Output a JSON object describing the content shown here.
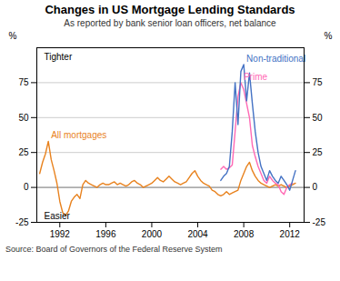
{
  "chart_data": {
    "type": "line",
    "title": "Changes in US Mortgage Lending Standards",
    "subtitle": "As reported by bank senior loan officers, net balance",
    "source": "Source: Board of Governors of the Federal Reserve System",
    "ylabel": "%",
    "y2label": "%",
    "annotations": [
      "Tighter",
      "Easier"
    ],
    "xlim": [
      1990.0,
      2013.25
    ],
    "xticks": [
      1992,
      1996,
      2000,
      2004,
      2008,
      2012
    ],
    "ylim": [
      -25,
      100
    ],
    "yticks": [
      -25,
      0,
      25,
      50,
      75
    ],
    "y2lim": [
      -25,
      100
    ],
    "y2ticks": [
      -25,
      0,
      25,
      50,
      75
    ],
    "grid": true,
    "series": [
      {
        "name": "All mortgages",
        "color": "#E8821E",
        "x": [
          1990.25,
          1990.5,
          1990.75,
          1991.0,
          1991.25,
          1991.5,
          1991.75,
          1992.0,
          1992.25,
          1992.5,
          1992.75,
          1993.0,
          1993.25,
          1993.5,
          1993.75,
          1994.0,
          1994.25,
          1994.5,
          1994.75,
          1995.0,
          1995.25,
          1995.5,
          1995.75,
          1996.0,
          1996.25,
          1996.5,
          1996.75,
          1997.0,
          1997.25,
          1997.5,
          1997.75,
          1998.0,
          1998.25,
          1998.5,
          1998.75,
          1999.0,
          1999.25,
          1999.5,
          1999.75,
          2000.0,
          2000.25,
          2000.5,
          2000.75,
          2001.0,
          2001.25,
          2001.5,
          2001.75,
          2002.0,
          2002.25,
          2002.5,
          2002.75,
          2003.0,
          2003.25,
          2003.5,
          2003.75,
          2004.0,
          2004.25,
          2004.5,
          2004.75,
          2005.0,
          2005.25,
          2005.5,
          2005.75,
          2006.0,
          2006.25,
          2006.5,
          2006.75,
          2007.0,
          2007.25,
          2007.5,
          2007.75,
          2008.0,
          2008.25,
          2008.5,
          2008.75,
          2009.0,
          2009.25,
          2009.5,
          2009.75,
          2010.0,
          2010.25,
          2010.5,
          2010.75,
          2011.0,
          2011.25,
          2011.5,
          2011.75,
          2012.0,
          2012.25,
          2012.5
        ],
        "values": [
          10,
          18,
          24,
          33,
          20,
          12,
          3,
          -10,
          -18,
          -20,
          -17,
          -10,
          -7,
          -5,
          -8,
          2,
          5,
          3,
          2,
          1,
          0,
          2,
          3,
          2,
          2,
          3,
          4,
          2,
          3,
          2,
          1,
          2,
          4,
          5,
          3,
          2,
          0,
          1,
          2,
          3,
          5,
          7,
          5,
          4,
          6,
          8,
          6,
          4,
          3,
          2,
          3,
          4,
          7,
          10,
          12,
          8,
          5,
          3,
          2,
          1,
          -2,
          -3,
          -5,
          -6,
          -5,
          -3,
          -5,
          -4,
          -3,
          -2,
          5,
          10,
          15,
          18,
          12,
          8,
          5,
          3,
          2,
          1,
          0,
          1,
          2,
          1,
          2,
          1,
          0,
          1,
          2,
          3
        ]
      },
      {
        "name": "Prime",
        "color": "#FF69B4",
        "x": [
          2006.0,
          2006.25,
          2006.5,
          2006.75,
          2007.0,
          2007.25,
          2007.5,
          2007.75,
          2008.0,
          2008.25,
          2008.5,
          2008.75,
          2009.0,
          2009.25,
          2009.5,
          2009.75,
          2010.0,
          2010.25,
          2010.5,
          2010.75,
          2011.0,
          2011.25,
          2011.5,
          2011.75,
          2012.0,
          2012.25
        ],
        "values": [
          13,
          15,
          13,
          14,
          16,
          40,
          65,
          75,
          70,
          60,
          50,
          30,
          22,
          15,
          10,
          5,
          3,
          8,
          5,
          3,
          2,
          -3,
          -5,
          0,
          2,
          3
        ]
      },
      {
        "name": "Non-traditional",
        "color": "#4472C4",
        "x": [
          2006.0,
          2006.25,
          2006.5,
          2006.75,
          2007.0,
          2007.25,
          2007.5,
          2007.75,
          2008.0,
          2008.25,
          2008.5,
          2008.75,
          2009.0,
          2009.25,
          2009.5,
          2009.75,
          2010.0,
          2010.25,
          2010.5,
          2010.75,
          2011.0,
          2011.25,
          2011.5,
          2011.75,
          2012.0,
          2012.25,
          2012.5
        ],
        "values": [
          5,
          8,
          10,
          15,
          40,
          75,
          45,
          83,
          88,
          62,
          82,
          60,
          40,
          25,
          15,
          10,
          5,
          12,
          8,
          5,
          3,
          8,
          5,
          2,
          -2,
          5,
          12
        ]
      }
    ]
  }
}
